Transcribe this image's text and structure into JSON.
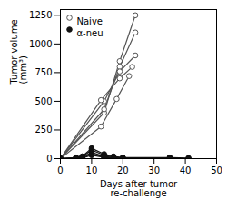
{
  "chart_data": {
    "type": "line",
    "xlabel": "Days after tumor\nre-challenge",
    "ylabel": "Tumor volume\n(mm³)",
    "xlim": [
      0,
      50
    ],
    "xticks": [
      0,
      10,
      20,
      30,
      40,
      50
    ],
    "ylim": [
      0,
      1300
    ],
    "yticks": [
      0,
      250,
      500,
      750,
      1000,
      1250
    ],
    "grid": false,
    "legend": "upper left",
    "series": [
      {
        "name": "Naive",
        "color": "#555555",
        "marker": "open_circle",
        "x": [
          0,
          14,
          19,
          24
        ],
        "values": [
          0,
          400,
          850,
          1250
        ]
      },
      {
        "name": "Naive",
        "color": "#555555",
        "marker": "open_circle",
        "x": [
          0,
          14,
          19,
          24
        ],
        "values": [
          0,
          430,
          800,
          1100
        ]
      },
      {
        "name": "Naive",
        "color": "#555555",
        "marker": "open_circle",
        "x": [
          0,
          14,
          19,
          24
        ],
        "values": [
          0,
          500,
          760,
          900
        ]
      },
      {
        "name": "Naive",
        "color": "#555555",
        "marker": "open_circle",
        "x": [
          0,
          13,
          19,
          23
        ],
        "values": [
          0,
          510,
          700,
          800
        ]
      },
      {
        "name": "Naive",
        "color": "#555555",
        "marker": "open_circle",
        "x": [
          0,
          13,
          18,
          22
        ],
        "values": [
          0,
          280,
          520,
          720
        ]
      },
      {
        "name": "α-neu",
        "color": "#111111",
        "marker": "circle",
        "x": [
          0,
          5,
          7,
          10,
          14,
          17,
          20,
          35,
          41
        ],
        "values": [
          0,
          10,
          20,
          90,
          40,
          20,
          10,
          10,
          5
        ]
      },
      {
        "name": "α-neu",
        "color": "#111111",
        "marker": "circle",
        "x": [
          0,
          5,
          7,
          10,
          14,
          17,
          20,
          35,
          41
        ],
        "values": [
          0,
          8,
          15,
          75,
          30,
          15,
          8,
          5,
          0
        ]
      },
      {
        "name": "α-neu",
        "color": "#111111",
        "marker": "circle",
        "x": [
          0,
          5,
          7,
          10,
          14,
          17,
          20,
          35
        ],
        "values": [
          0,
          5,
          10,
          55,
          20,
          10,
          5,
          5
        ]
      },
      {
        "name": "α-neu",
        "color": "#111111",
        "marker": "circle",
        "x": [
          0,
          5,
          7,
          10,
          14,
          17,
          20,
          35
        ],
        "values": [
          0,
          5,
          8,
          40,
          15,
          8,
          5,
          0
        ]
      },
      {
        "name": "α-neu",
        "color": "#111111",
        "marker": "circle",
        "x": [
          0,
          5,
          7,
          10,
          14,
          17,
          20
        ],
        "values": [
          0,
          3,
          5,
          30,
          10,
          5,
          0
        ]
      }
    ]
  }
}
